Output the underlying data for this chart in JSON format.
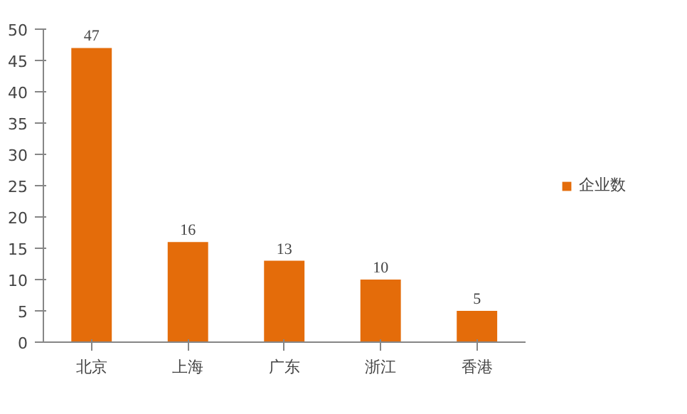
{
  "chart_data": {
    "type": "bar",
    "categories": [
      "北京",
      "上海",
      "广东",
      "浙江",
      "香港"
    ],
    "series": [
      {
        "name": "企业数",
        "color": "#e46c0a",
        "values": [
          47,
          16,
          13,
          10,
          5
        ]
      }
    ],
    "ylim": [
      0,
      50
    ],
    "yticks": [
      0,
      5,
      10,
      15,
      20,
      25,
      30,
      35,
      40,
      45,
      50
    ],
    "data_labels": true,
    "legend": "right",
    "grid": false
  }
}
